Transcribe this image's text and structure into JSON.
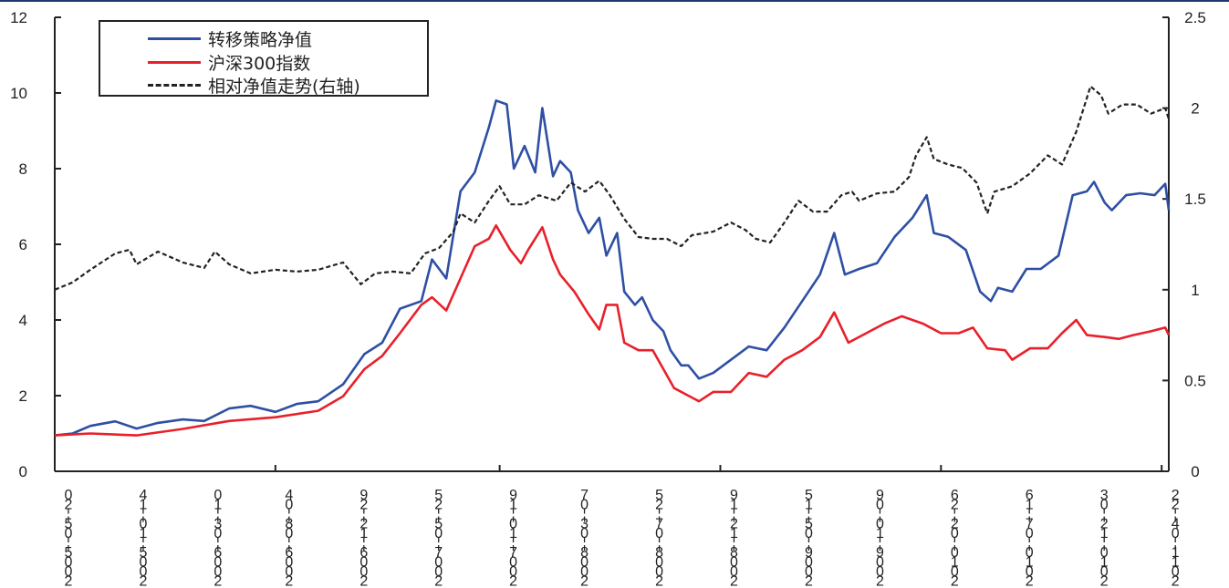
{
  "chart_data": {
    "type": "line",
    "title": "",
    "xlabel": "",
    "ylabel": "",
    "x_unit": "week index",
    "xlim": [
      0,
      313
    ],
    "ylim_left": [
      0,
      12
    ],
    "ylim_right": [
      0,
      2.5
    ],
    "left_ticks": [
      "0",
      "2",
      "4",
      "6",
      "8",
      "10",
      "12"
    ],
    "left_tick_values": [
      0,
      2,
      4,
      6,
      8,
      10,
      12
    ],
    "right_ticks": [
      "0",
      "0.5",
      "1",
      "1.5",
      "2",
      "2.5"
    ],
    "right_tick_values": [
      0,
      0.5,
      1,
      1.5,
      2,
      2.5
    ],
    "x_ticks": [
      {
        "x": 0,
        "label": "2005-05-20"
      },
      {
        "x": 21,
        "label": "2005-10-14"
      },
      {
        "x": 42,
        "label": "2006-03-10"
      },
      {
        "x": 62,
        "label": "2006-08-04"
      },
      {
        "x": 83,
        "label": "2006-12-29"
      },
      {
        "x": 104,
        "label": "2007-05-25"
      },
      {
        "x": 125,
        "label": "2007-10-19"
      },
      {
        "x": 145,
        "label": "2008-03-07"
      },
      {
        "x": 166,
        "label": "2008-07-25"
      },
      {
        "x": 187,
        "label": "2008-12-19"
      },
      {
        "x": 208,
        "label": "2009-05-15"
      },
      {
        "x": 228,
        "label": "2009-10-09"
      },
      {
        "x": 249,
        "label": "2010-02-26"
      },
      {
        "x": 270,
        "label": "2010-07-16"
      },
      {
        "x": 291,
        "label": "2010-12-03"
      },
      {
        "x": 311,
        "label": "2011-04-22"
      }
    ],
    "major_tick_weeks": [
      0,
      62,
      125,
      187,
      249,
      311
    ],
    "grid": false,
    "legend_position": "top-left",
    "series": [
      {
        "name": "转移策略净值",
        "axis": "left",
        "color": "#2e4fa3",
        "style": "solid",
        "points": [
          [
            0,
            0.95
          ],
          [
            5,
            1.0
          ],
          [
            10,
            1.2
          ],
          [
            17,
            1.32
          ],
          [
            23,
            1.13
          ],
          [
            29,
            1.28
          ],
          [
            36,
            1.37
          ],
          [
            42,
            1.33
          ],
          [
            49,
            1.66
          ],
          [
            55,
            1.73
          ],
          [
            62,
            1.57
          ],
          [
            68,
            1.78
          ],
          [
            74,
            1.85
          ],
          [
            81,
            2.3
          ],
          [
            87,
            3.1
          ],
          [
            92,
            3.4
          ],
          [
            97,
            4.3
          ],
          [
            103,
            4.5
          ],
          [
            106,
            5.6
          ],
          [
            110,
            5.1
          ],
          [
            114,
            7.4
          ],
          [
            118,
            7.9
          ],
          [
            122,
            9.1
          ],
          [
            124,
            9.8
          ],
          [
            127,
            9.7
          ],
          [
            129,
            8.0
          ],
          [
            132,
            8.6
          ],
          [
            135,
            7.9
          ],
          [
            137,
            9.6
          ],
          [
            140,
            7.8
          ],
          [
            142,
            8.2
          ],
          [
            145,
            7.9
          ],
          [
            147,
            6.9
          ],
          [
            150,
            6.3
          ],
          [
            153,
            6.7
          ],
          [
            155,
            5.7
          ],
          [
            158,
            6.3
          ],
          [
            160,
            4.75
          ],
          [
            163,
            4.4
          ],
          [
            165,
            4.6
          ],
          [
            168,
            4.0
          ],
          [
            171,
            3.7
          ],
          [
            173,
            3.2
          ],
          [
            176,
            2.8
          ],
          [
            178,
            2.8
          ],
          [
            181,
            2.45
          ],
          [
            185,
            2.6
          ],
          [
            190,
            2.95
          ],
          [
            195,
            3.3
          ],
          [
            200,
            3.2
          ],
          [
            205,
            3.8
          ],
          [
            210,
            4.5
          ],
          [
            215,
            5.2
          ],
          [
            219,
            6.3
          ],
          [
            222,
            5.2
          ],
          [
            226,
            5.35
          ],
          [
            231,
            5.5
          ],
          [
            236,
            6.2
          ],
          [
            241,
            6.7
          ],
          [
            245,
            7.3
          ],
          [
            247,
            6.3
          ],
          [
            251,
            6.2
          ],
          [
            256,
            5.85
          ],
          [
            260,
            4.75
          ],
          [
            263,
            4.5
          ],
          [
            265,
            4.85
          ],
          [
            269,
            4.75
          ],
          [
            273,
            5.35
          ],
          [
            277,
            5.35
          ],
          [
            282,
            5.7
          ],
          [
            286,
            7.3
          ],
          [
            290,
            7.4
          ],
          [
            292,
            7.65
          ],
          [
            295,
            7.1
          ],
          [
            297,
            6.9
          ],
          [
            301,
            7.3
          ],
          [
            305,
            7.35
          ],
          [
            309,
            7.3
          ],
          [
            312,
            7.6
          ],
          [
            313,
            6.9
          ]
        ]
      },
      {
        "name": "沪深300指数",
        "axis": "left",
        "color": "#e8202a",
        "style": "solid",
        "points": [
          [
            0,
            0.95
          ],
          [
            10,
            1.0
          ],
          [
            23,
            0.95
          ],
          [
            36,
            1.12
          ],
          [
            49,
            1.33
          ],
          [
            62,
            1.43
          ],
          [
            74,
            1.6
          ],
          [
            81,
            1.98
          ],
          [
            87,
            2.7
          ],
          [
            92,
            3.05
          ],
          [
            97,
            3.65
          ],
          [
            103,
            4.4
          ],
          [
            106,
            4.6
          ],
          [
            110,
            4.25
          ],
          [
            114,
            5.1
          ],
          [
            118,
            5.95
          ],
          [
            122,
            6.15
          ],
          [
            124,
            6.5
          ],
          [
            128,
            5.85
          ],
          [
            131,
            5.5
          ],
          [
            133,
            5.85
          ],
          [
            137,
            6.45
          ],
          [
            140,
            5.6
          ],
          [
            142,
            5.2
          ],
          [
            146,
            4.75
          ],
          [
            150,
            4.15
          ],
          [
            153,
            3.75
          ],
          [
            155,
            4.4
          ],
          [
            158,
            4.4
          ],
          [
            160,
            3.4
          ],
          [
            164,
            3.2
          ],
          [
            168,
            3.2
          ],
          [
            171,
            2.7
          ],
          [
            174,
            2.2
          ],
          [
            178,
            2.0
          ],
          [
            181,
            1.85
          ],
          [
            185,
            2.1
          ],
          [
            190,
            2.1
          ],
          [
            195,
            2.6
          ],
          [
            200,
            2.5
          ],
          [
            205,
            2.95
          ],
          [
            210,
            3.2
          ],
          [
            215,
            3.55
          ],
          [
            219,
            4.2
          ],
          [
            223,
            3.4
          ],
          [
            228,
            3.65
          ],
          [
            233,
            3.9
          ],
          [
            238,
            4.1
          ],
          [
            244,
            3.9
          ],
          [
            249,
            3.65
          ],
          [
            254,
            3.65
          ],
          [
            258,
            3.8
          ],
          [
            262,
            3.25
          ],
          [
            267,
            3.2
          ],
          [
            269,
            2.95
          ],
          [
            274,
            3.25
          ],
          [
            279,
            3.25
          ],
          [
            283,
            3.65
          ],
          [
            287,
            4.0
          ],
          [
            290,
            3.6
          ],
          [
            295,
            3.55
          ],
          [
            299,
            3.5
          ],
          [
            303,
            3.6
          ],
          [
            308,
            3.7
          ],
          [
            312,
            3.8
          ],
          [
            313,
            3.6
          ]
        ]
      },
      {
        "name": "相对净值走势(右轴)",
        "axis": "right",
        "color": "#222222",
        "style": "dashed",
        "points": [
          [
            0,
            1.0
          ],
          [
            5,
            1.04
          ],
          [
            10,
            1.11
          ],
          [
            17,
            1.2
          ],
          [
            21,
            1.22
          ],
          [
            23,
            1.14
          ],
          [
            29,
            1.21
          ],
          [
            36,
            1.15
          ],
          [
            42,
            1.12
          ],
          [
            45,
            1.21
          ],
          [
            49,
            1.14
          ],
          [
            55,
            1.09
          ],
          [
            62,
            1.11
          ],
          [
            68,
            1.1
          ],
          [
            74,
            1.11
          ],
          [
            81,
            1.15
          ],
          [
            86,
            1.03
          ],
          [
            90,
            1.09
          ],
          [
            95,
            1.1
          ],
          [
            100,
            1.09
          ],
          [
            104,
            1.2
          ],
          [
            108,
            1.23
          ],
          [
            112,
            1.32
          ],
          [
            114,
            1.42
          ],
          [
            118,
            1.37
          ],
          [
            122,
            1.49
          ],
          [
            125,
            1.57
          ],
          [
            128,
            1.47
          ],
          [
            132,
            1.47
          ],
          [
            136,
            1.52
          ],
          [
            141,
            1.49
          ],
          [
            145,
            1.59
          ],
          [
            149,
            1.54
          ],
          [
            153,
            1.6
          ],
          [
            156,
            1.52
          ],
          [
            160,
            1.39
          ],
          [
            164,
            1.29
          ],
          [
            168,
            1.28
          ],
          [
            172,
            1.28
          ],
          [
            176,
            1.24
          ],
          [
            179,
            1.3
          ],
          [
            185,
            1.32
          ],
          [
            190,
            1.37
          ],
          [
            194,
            1.33
          ],
          [
            197,
            1.28
          ],
          [
            201,
            1.26
          ],
          [
            205,
            1.37
          ],
          [
            209,
            1.49
          ],
          [
            213,
            1.43
          ],
          [
            217,
            1.43
          ],
          [
            221,
            1.52
          ],
          [
            224,
            1.54
          ],
          [
            226,
            1.49
          ],
          [
            231,
            1.53
          ],
          [
            236,
            1.54
          ],
          [
            240,
            1.62
          ],
          [
            242,
            1.74
          ],
          [
            245,
            1.84
          ],
          [
            247,
            1.72
          ],
          [
            251,
            1.69
          ],
          [
            255,
            1.67
          ],
          [
            259,
            1.59
          ],
          [
            262,
            1.42
          ],
          [
            264,
            1.54
          ],
          [
            269,
            1.57
          ],
          [
            274,
            1.64
          ],
          [
            279,
            1.74
          ],
          [
            283,
            1.69
          ],
          [
            287,
            1.87
          ],
          [
            291,
            2.12
          ],
          [
            294,
            2.07
          ],
          [
            296,
            1.97
          ],
          [
            300,
            2.02
          ],
          [
            304,
            2.02
          ],
          [
            308,
            1.97
          ],
          [
            312,
            2.0
          ],
          [
            313,
            1.94
          ]
        ]
      }
    ]
  }
}
